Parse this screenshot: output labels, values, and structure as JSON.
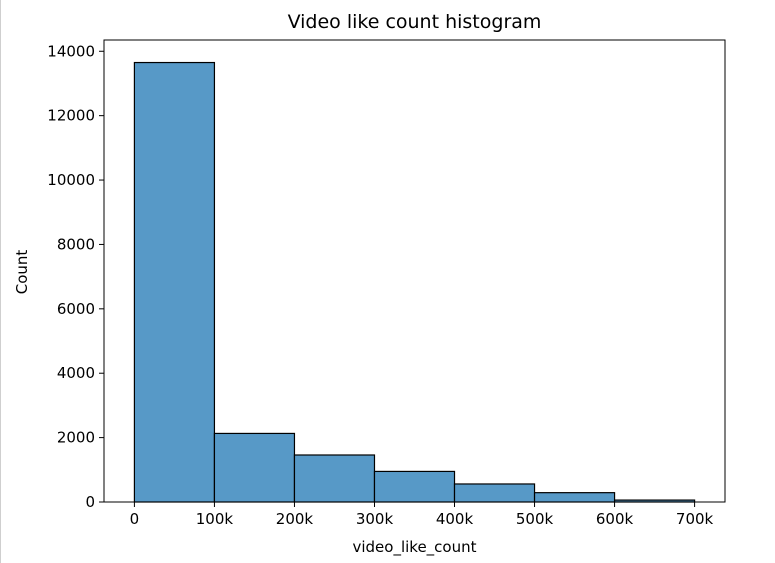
{
  "chart_data": {
    "type": "bar",
    "title": "Video like count histogram",
    "xlabel": "video_like_count",
    "ylabel": "Count",
    "bins": [
      {
        "start": 0,
        "end": 100000,
        "count": 13650
      },
      {
        "start": 100000,
        "end": 200000,
        "count": 2130
      },
      {
        "start": 200000,
        "end": 300000,
        "count": 1460
      },
      {
        "start": 300000,
        "end": 400000,
        "count": 950
      },
      {
        "start": 400000,
        "end": 500000,
        "count": 560
      },
      {
        "start": 500000,
        "end": 600000,
        "count": 290
      },
      {
        "start": 600000,
        "end": 700000,
        "count": 60
      }
    ],
    "xlim": [
      -38000,
      738000
    ],
    "ylim": [
      0,
      14350
    ],
    "xticks": [
      0,
      100000,
      200000,
      300000,
      400000,
      500000,
      600000,
      700000
    ],
    "xtick_labels": [
      "0",
      "100k",
      "200k",
      "300k",
      "400k",
      "500k",
      "600k",
      "700k"
    ],
    "yticks": [
      0,
      2000,
      4000,
      6000,
      8000,
      10000,
      12000,
      14000
    ],
    "ytick_labels": [
      "0",
      "2000",
      "4000",
      "6000",
      "8000",
      "10000",
      "12000",
      "14000"
    ],
    "bar_color": "#5799c7",
    "edge_color": "#000000",
    "grid": false
  }
}
